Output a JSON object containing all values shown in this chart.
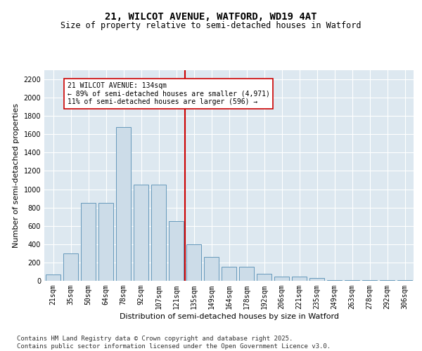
{
  "title_line1": "21, WILCOT AVENUE, WATFORD, WD19 4AT",
  "title_line2": "Size of property relative to semi-detached houses in Watford",
  "xlabel": "Distribution of semi-detached houses by size in Watford",
  "ylabel": "Number of semi-detached properties",
  "categories": [
    "21sqm",
    "35sqm",
    "50sqm",
    "64sqm",
    "78sqm",
    "92sqm",
    "107sqm",
    "121sqm",
    "135sqm",
    "149sqm",
    "164sqm",
    "178sqm",
    "192sqm",
    "206sqm",
    "221sqm",
    "235sqm",
    "249sqm",
    "263sqm",
    "278sqm",
    "292sqm",
    "306sqm"
  ],
  "values": [
    70,
    300,
    850,
    850,
    1680,
    1050,
    1050,
    650,
    400,
    260,
    150,
    150,
    75,
    45,
    45,
    30,
    10,
    10,
    5,
    5,
    5
  ],
  "bar_color": "#ccdce8",
  "bar_edge_color": "#6699bb",
  "vline_color": "#cc0000",
  "annotation_text": "21 WILCOT AVENUE: 134sqm\n← 89% of semi-detached houses are smaller (4,971)\n11% of semi-detached houses are larger (596) →",
  "annotation_box_color": "#ffffff",
  "annotation_box_edge": "#cc0000",
  "ylim": [
    0,
    2300
  ],
  "yticks": [
    0,
    200,
    400,
    600,
    800,
    1000,
    1200,
    1400,
    1600,
    1800,
    2000,
    2200
  ],
  "background_color": "#dde8f0",
  "footer_text": "Contains HM Land Registry data © Crown copyright and database right 2025.\nContains public sector information licensed under the Open Government Licence v3.0.",
  "title_fontsize": 10,
  "subtitle_fontsize": 8.5,
  "axis_label_fontsize": 8,
  "tick_fontsize": 7,
  "footer_fontsize": 6.5
}
